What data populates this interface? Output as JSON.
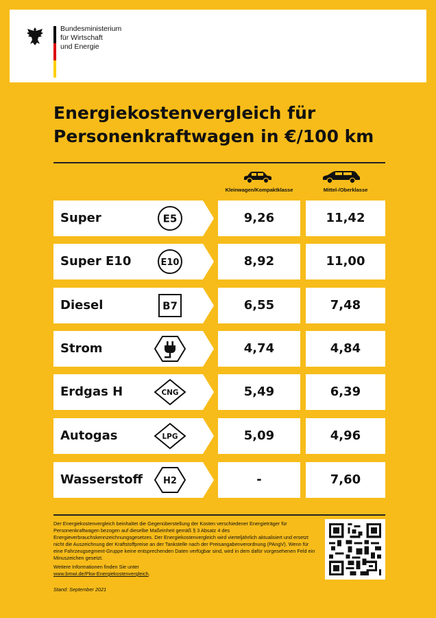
{
  "header": {
    "ministry_lines": [
      "Bundesministerium",
      "für Wirtschaft",
      "und Energie"
    ]
  },
  "title_lines": [
    "Energiekostenvergleich für",
    "Personenkraftwagen in €/100 km"
  ],
  "columns": {
    "small": {
      "label": "Kleinwagen/Kompaktklasse",
      "icon": "small-car-icon"
    },
    "large": {
      "label": "Mittel-/Oberklasse",
      "icon": "large-car-icon"
    }
  },
  "fuels": [
    {
      "name": "Super",
      "symbol": "E5",
      "small": "9,26",
      "large": "11,42"
    },
    {
      "name": "Super E10",
      "symbol": "E10",
      "small": "8,92",
      "large": "11,00"
    },
    {
      "name": "Diesel",
      "symbol": "B7",
      "small": "6,55",
      "large": "7,48"
    },
    {
      "name": "Strom",
      "symbol": "plug-icon",
      "small": "4,74",
      "large": "4,84"
    },
    {
      "name": "Erdgas H",
      "symbol": "CNG",
      "small": "5,49",
      "large": "6,39"
    },
    {
      "name": "Autogas",
      "symbol": "LPG",
      "small": "5,09",
      "large": "4,96"
    },
    {
      "name": "Wasserstoff",
      "symbol": "H2",
      "small": "-",
      "large": "7,60"
    }
  ],
  "footnote": {
    "paragraph": "Der Energiekostenvergleich beinhaltet die Gegenüberstellung der Kosten verschiedener Energieträger für Personenkraftwagen bezogen auf dieselbe Maßeinheit gemäß § 3 Absatz 4 des Energieverbrauchskennzeichnungsgesetzes. Der Energiekostenvergleich wird vierteljährlich aktualisiert und ersetzt nicht die Auszeichnung der Kraftstoffpreise an der Tankstelle nach der Preisangabenverordnung (PAngV). Wenn für eine Fahrzeugsegment-Gruppe keine entsprechenden Daten verfügbar sind, wird in dem dafür vorgesehenen Feld ein Minuszeichen gesetzt.",
    "more_info": "Weitere Informationen finden Sie unter",
    "link": "www.bmwi.de/Pkw-Energiekostenvergleich",
    "link_suffix": ".",
    "stand": "Stand: September 2021"
  },
  "colors": {
    "background": "#f7bc1a",
    "panel": "#ffffff",
    "text": "#111111"
  }
}
